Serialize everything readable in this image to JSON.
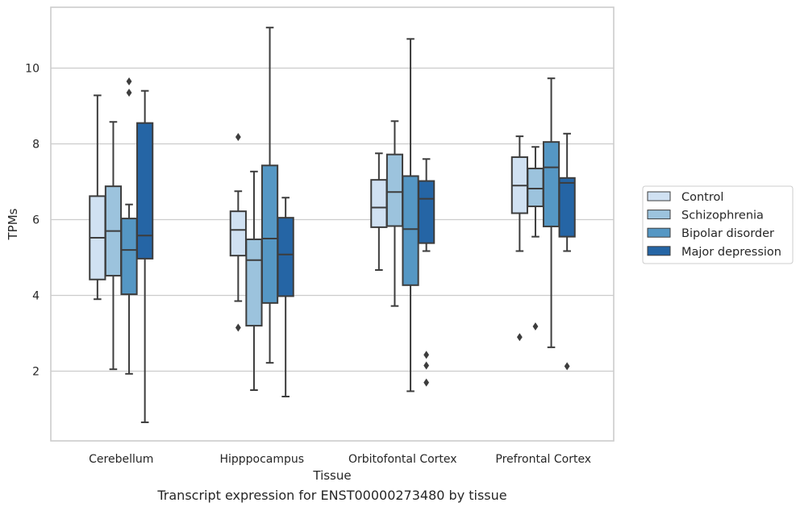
{
  "caption": "Transcript expression for ENST00000273480 by tissue",
  "chart_data": {
    "type": "box",
    "xlabel": "Tissue",
    "ylabel": "TPMs",
    "ylim": [
      0.2,
      11.6
    ],
    "yticks": [
      2,
      4,
      6,
      8,
      10
    ],
    "grid": true,
    "legend_position": "right",
    "categories": [
      "Cerebellum",
      "Hipppocampus",
      "Orbitofontal Cortex",
      "Prefrontal Cortex"
    ],
    "series": [
      {
        "name": "Control",
        "color": "#d0e1f2",
        "boxes": [
          {
            "whislo": 3.9,
            "q1": 4.42,
            "med": 5.52,
            "q3": 6.62,
            "whishi": 9.28,
            "fliers": []
          },
          {
            "whislo": 3.85,
            "q1": 5.05,
            "med": 5.73,
            "q3": 6.22,
            "whishi": 6.75,
            "fliers": [
              8.18,
              3.15
            ]
          },
          {
            "whislo": 4.67,
            "q1": 5.8,
            "med": 6.32,
            "q3": 7.05,
            "whishi": 7.75,
            "fliers": []
          },
          {
            "whislo": 5.17,
            "q1": 6.17,
            "med": 6.9,
            "q3": 7.65,
            "whishi": 8.2,
            "fliers": [
              2.9
            ]
          }
        ]
      },
      {
        "name": "Schizophrenia",
        "color": "#9cc3dd",
        "boxes": [
          {
            "whislo": 2.05,
            "q1": 4.52,
            "med": 5.7,
            "q3": 6.88,
            "whishi": 8.58,
            "fliers": []
          },
          {
            "whislo": 1.5,
            "q1": 3.2,
            "med": 4.93,
            "q3": 5.48,
            "whishi": 7.27,
            "fliers": []
          },
          {
            "whislo": 3.72,
            "q1": 5.83,
            "med": 6.73,
            "q3": 7.72,
            "whishi": 8.6,
            "fliers": []
          },
          {
            "whislo": 5.55,
            "q1": 6.35,
            "med": 6.82,
            "q3": 7.35,
            "whishi": 7.92,
            "fliers": [
              3.18
            ]
          }
        ]
      },
      {
        "name": "Bipolar disorder",
        "color": "#5597c4",
        "boxes": [
          {
            "whislo": 1.93,
            "q1": 4.03,
            "med": 5.2,
            "q3": 6.03,
            "whishi": 6.4,
            "fliers": [
              9.65,
              9.35
            ]
          },
          {
            "whislo": 2.22,
            "q1": 3.8,
            "med": 5.5,
            "q3": 7.43,
            "whishi": 11.07,
            "fliers": []
          },
          {
            "whislo": 1.47,
            "q1": 4.27,
            "med": 5.75,
            "q3": 7.15,
            "whishi": 10.77,
            "fliers": []
          },
          {
            "whislo": 2.63,
            "q1": 5.82,
            "med": 7.38,
            "q3": 8.05,
            "whishi": 9.73,
            "fliers": []
          }
        ]
      },
      {
        "name": "Major depression",
        "color": "#2565a5",
        "boxes": [
          {
            "whislo": 0.65,
            "q1": 4.97,
            "med": 5.58,
            "q3": 8.55,
            "whishi": 9.4,
            "fliers": []
          },
          {
            "whislo": 1.33,
            "q1": 3.98,
            "med": 5.08,
            "q3": 6.05,
            "whishi": 6.58,
            "fliers": []
          },
          {
            "whislo": 5.17,
            "q1": 5.38,
            "med": 6.55,
            "q3": 7.02,
            "whishi": 7.6,
            "fliers": [
              2.43,
              2.15,
              1.7
            ]
          },
          {
            "whislo": 5.17,
            "q1": 5.55,
            "med": 6.97,
            "q3": 7.1,
            "whishi": 8.27,
            "fliers": [
              2.13
            ]
          }
        ]
      }
    ]
  }
}
